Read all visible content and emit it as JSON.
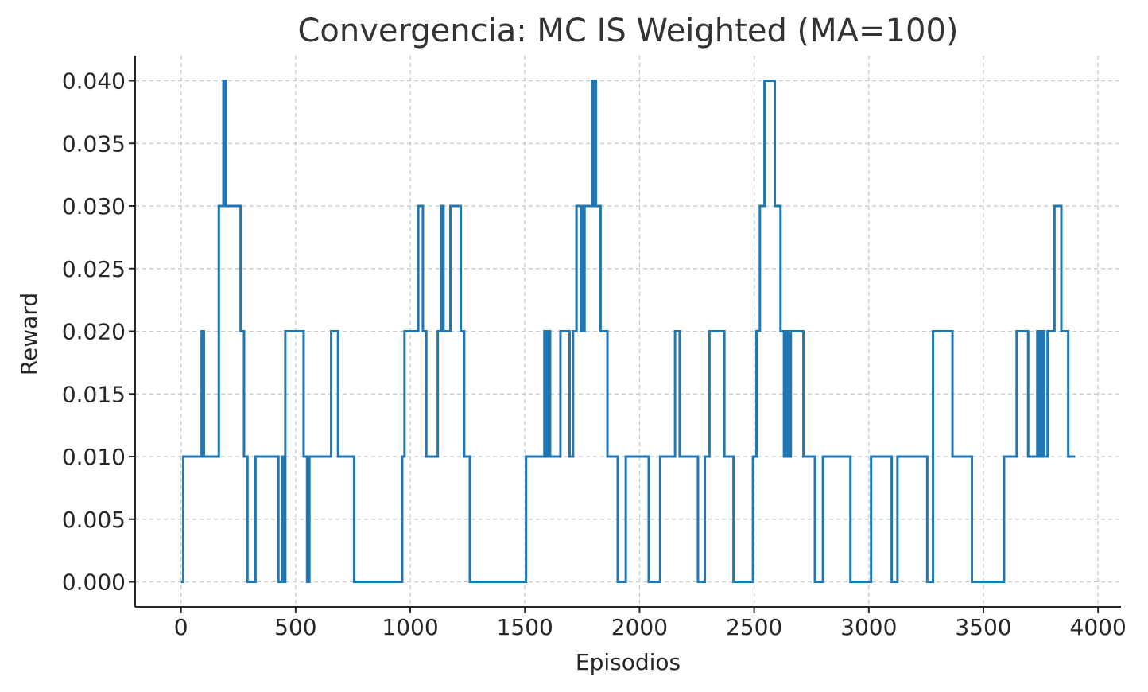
{
  "chart_data": {
    "type": "line",
    "title": "Convergencia: MC IS Weighted (MA=100)",
    "xlabel": "Episodios",
    "ylabel": "Reward",
    "xlim": [
      -200,
      4100
    ],
    "ylim": [
      -0.002,
      0.042
    ],
    "xticks": [
      0,
      500,
      1000,
      1500,
      2000,
      2500,
      3000,
      3500,
      4000
    ],
    "xtick_labels": [
      "0",
      "500",
      "1000",
      "1500",
      "2000",
      "2500",
      "3000",
      "3500",
      "4000"
    ],
    "yticks": [
      0.0,
      0.005,
      0.01,
      0.015,
      0.02,
      0.025,
      0.03,
      0.035,
      0.04
    ],
    "ytick_labels": [
      "0.000",
      "0.005",
      "0.010",
      "0.015",
      "0.020",
      "0.025",
      "0.030",
      "0.035",
      "0.040"
    ],
    "grid": true,
    "step": true,
    "series": [
      {
        "color": "#1f77b4",
        "x": [
          0,
          10,
          90,
          100,
          110,
          165,
          185,
          195,
          260,
          275,
          290,
          325,
          425,
          440,
          450,
          455,
          535,
          550,
          560,
          590,
          655,
          685,
          755,
          965,
          975,
          1035,
          1055,
          1070,
          1080,
          1120,
          1135,
          1145,
          1150,
          1175,
          1220,
          1235,
          1260,
          1505,
          1585,
          1595,
          1600,
          1610,
          1655,
          1695,
          1710,
          1725,
          1745,
          1750,
          1755,
          1760,
          1795,
          1800,
          1805,
          1810,
          1815,
          1830,
          1860,
          1905,
          1940,
          2040,
          2090,
          2155,
          2175,
          2255,
          2285,
          2305,
          2370,
          2410,
          2495,
          2510,
          2525,
          2545,
          2590,
          2615,
          2630,
          2640,
          2650,
          2660,
          2670,
          2715,
          2765,
          2800,
          2840,
          2920,
          3010,
          3100,
          3125,
          3170,
          3255,
          3280,
          3365,
          3375,
          3450,
          3590,
          3645,
          3695,
          3735,
          3745,
          3755,
          3765,
          3780,
          3810,
          3840,
          3870,
          3900
        ],
        "y": [
          0,
          0.01,
          0.02,
          0.01,
          0.01,
          0.03,
          0.04,
          0.03,
          0.02,
          0.01,
          0,
          0.01,
          0,
          0.01,
          0,
          0.02,
          0.01,
          0,
          0.01,
          0.01,
          0.02,
          0.01,
          0,
          0.01,
          0.02,
          0.03,
          0.02,
          0.01,
          0.01,
          0.02,
          0.03,
          0.02,
          0.02,
          0.03,
          0.02,
          0.01,
          0,
          0.01,
          0.02,
          0.01,
          0.02,
          0.01,
          0.02,
          0.01,
          0.02,
          0.03,
          0.02,
          0.03,
          0.02,
          0.03,
          0.04,
          0.03,
          0.04,
          0.03,
          0.03,
          0.02,
          0.01,
          0,
          0.01,
          0,
          0.01,
          0.02,
          0.01,
          0,
          0.01,
          0.02,
          0.01,
          0,
          0.01,
          0.02,
          0.03,
          0.04,
          0.03,
          0.02,
          0.01,
          0.02,
          0.01,
          0.02,
          0.02,
          0.01,
          0,
          0.01,
          0.01,
          0,
          0.01,
          0,
          0.01,
          0.01,
          0,
          0.02,
          0.01,
          0.01,
          0,
          0.01,
          0.02,
          0.01,
          0.02,
          0.01,
          0.02,
          0.01,
          0.02,
          0.03,
          0.02,
          0.01,
          0.01
        ]
      }
    ]
  }
}
